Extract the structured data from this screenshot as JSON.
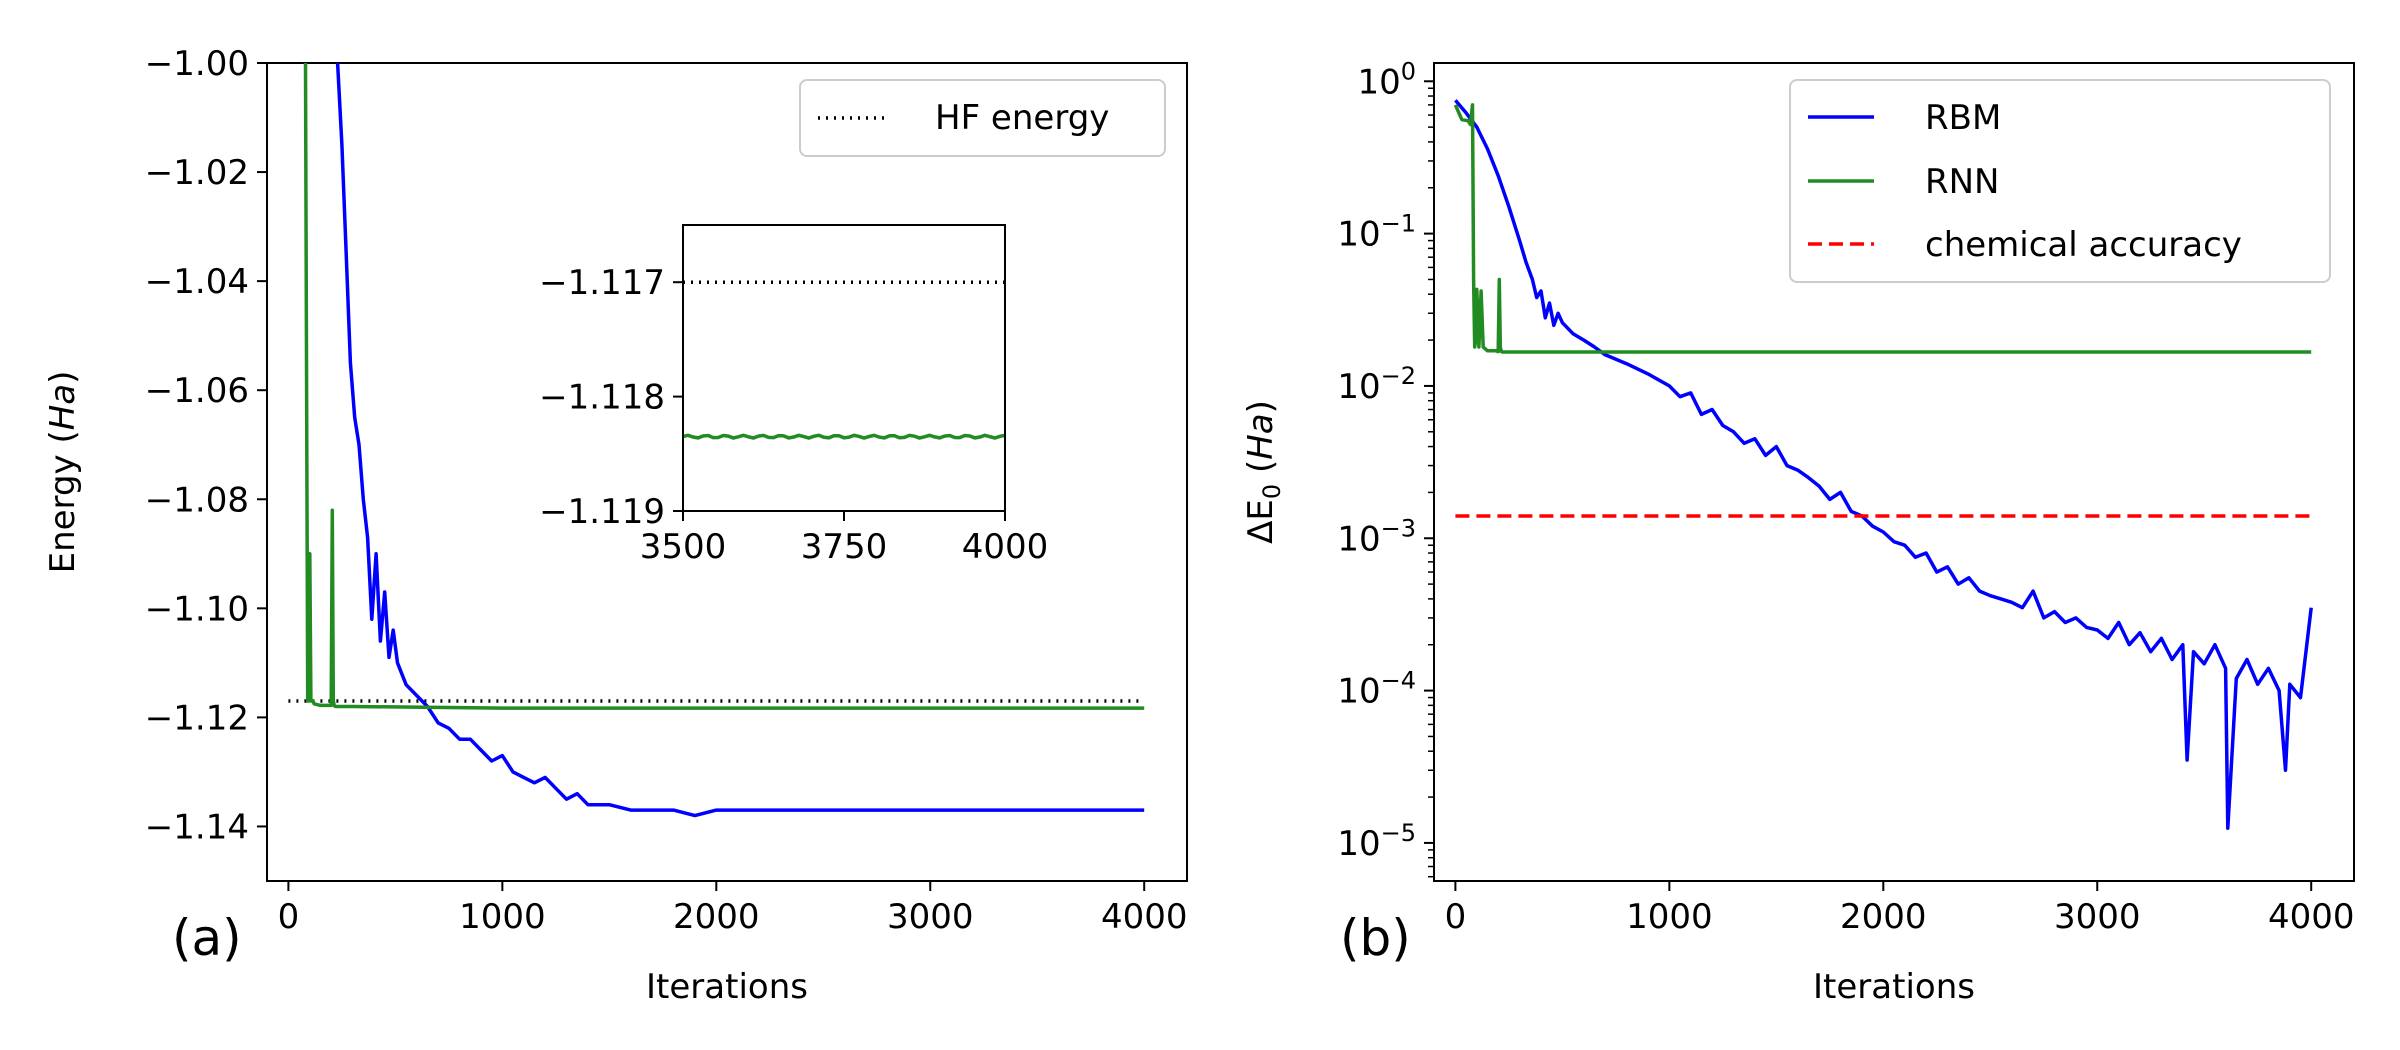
{
  "colors": {
    "rbm": "#0000ff",
    "rnn": "#228b22",
    "hf": "#000000",
    "chem": "#ff0000"
  },
  "panel_labels": {
    "a": "(a)",
    "b": "(b)"
  },
  "chart_data": [
    {
      "type": "line",
      "panel": "(a)",
      "xlabel": "Iterations",
      "ylabel_main": "Energy (",
      "ylabel_italic": "Ha",
      "ylabel_close": ")",
      "xlim": [
        -100,
        4200
      ],
      "ylim": [
        -1.15,
        -1.0
      ],
      "xticks": [
        0,
        1000,
        2000,
        3000,
        4000
      ],
      "xtick_labels": [
        "0",
        "1000",
        "2000",
        "3000",
        "4000"
      ],
      "yticks": [
        -1.14,
        -1.12,
        -1.1,
        -1.08,
        -1.06,
        -1.04,
        -1.02,
        -1.0
      ],
      "ytick_labels": [
        "−1.14",
        "−1.12",
        "−1.10",
        "−1.08",
        "−1.06",
        "−1.04",
        "−1.02",
        "−1.00"
      ],
      "legend": {
        "position": "top-right",
        "entries": [
          {
            "label": "HF energy",
            "style": "dotted",
            "color": "#000000"
          }
        ]
      },
      "series": [
        {
          "name": "HF energy",
          "color": "#000000",
          "style": "dotted",
          "x": [
            0,
            4000
          ],
          "y": [
            -1.117,
            -1.117
          ]
        },
        {
          "color": "#0000ff",
          "style": "solid",
          "x": [
            230,
            250,
            270,
            290,
            310,
            330,
            350,
            370,
            390,
            410,
            430,
            450,
            470,
            490,
            510,
            530,
            550,
            600,
            650,
            700,
            750,
            800,
            850,
            900,
            950,
            1000,
            1050,
            1100,
            1150,
            1200,
            1250,
            1300,
            1350,
            1400,
            1500,
            1600,
            1700,
            1800,
            1900,
            2000,
            2200,
            2500,
            3000,
            3500,
            4000
          ],
          "y": [
            -1.0,
            -1.015,
            -1.035,
            -1.055,
            -1.065,
            -1.07,
            -1.08,
            -1.087,
            -1.102,
            -1.09,
            -1.106,
            -1.097,
            -1.109,
            -1.104,
            -1.11,
            -1.112,
            -1.114,
            -1.116,
            -1.118,
            -1.121,
            -1.122,
            -1.124,
            -1.124,
            -1.126,
            -1.128,
            -1.127,
            -1.13,
            -1.131,
            -1.132,
            -1.131,
            -1.133,
            -1.135,
            -1.134,
            -1.136,
            -1.136,
            -1.137,
            -1.137,
            -1.137,
            -1.138,
            -1.137,
            -1.137,
            -1.137,
            -1.137,
            -1.137,
            -1.137
          ]
        },
        {
          "color": "#228b22",
          "style": "solid",
          "x": [
            80,
            80,
            85,
            90,
            95,
            100,
            105,
            110,
            115,
            120,
            150,
            200,
            205,
            210,
            215,
            220,
            300,
            1000,
            2000,
            3000,
            4000
          ],
          "y": [
            -1.0,
            -1.0,
            -1.06,
            -1.117,
            -1.117,
            -1.09,
            -1.117,
            -1.117,
            -1.117,
            -1.1175,
            -1.1178,
            -1.1178,
            -1.082,
            -1.117,
            -1.1179,
            -1.118,
            -1.118,
            -1.1183,
            -1.1183,
            -1.1183,
            -1.1183
          ]
        }
      ],
      "inset": {
        "xlim": [
          3500,
          4000
        ],
        "ylim": [
          -1.119,
          -1.1165
        ],
        "xticks": [
          3500,
          3750,
          4000
        ],
        "xtick_labels": [
          "3500",
          "3750",
          "4000"
        ],
        "yticks": [
          -1.119,
          -1.118,
          -1.117
        ],
        "ytick_labels": [
          "−1.119",
          "−1.118",
          "−1.117"
        ],
        "hf_y": -1.117,
        "rnn_y": -1.11835
      }
    },
    {
      "type": "line",
      "panel": "(b)",
      "xlabel": "Iterations",
      "ylabel_main": "ΔE",
      "ylabel_sub": "0",
      "ylabel_italic": "Ha",
      "yscale": "log",
      "xlim": [
        -100,
        4200
      ],
      "ylim_log10": [
        -5.25,
        0.12
      ],
      "xticks": [
        0,
        1000,
        2000,
        3000,
        4000
      ],
      "xtick_labels": [
        "0",
        "1000",
        "2000",
        "3000",
        "4000"
      ],
      "ytick_exponents": [
        0,
        -1,
        -2,
        -3,
        -4,
        -5
      ],
      "ytick_base": "10",
      "legend": {
        "position": "top-right",
        "entries": [
          {
            "label": "RBM",
            "style": "solid",
            "color": "#0000ff"
          },
          {
            "label": "RNN",
            "style": "solid",
            "color": "#228b22"
          },
          {
            "label": "chemical accuracy",
            "style": "dashed",
            "color": "#ff0000"
          }
        ]
      },
      "series": [
        {
          "name": "RBM",
          "color": "#0000ff",
          "style": "solid",
          "x": [
            0,
            50,
            100,
            150,
            200,
            250,
            300,
            330,
            360,
            380,
            400,
            420,
            440,
            460,
            480,
            500,
            550,
            600,
            650,
            700,
            800,
            900,
            1000,
            1050,
            1100,
            1150,
            1200,
            1250,
            1300,
            1350,
            1400,
            1450,
            1500,
            1550,
            1600,
            1650,
            1700,
            1750,
            1800,
            1850,
            1900,
            1950,
            2000,
            2050,
            2100,
            2150,
            2200,
            2250,
            2300,
            2350,
            2400,
            2450,
            2500,
            2550,
            2600,
            2650,
            2700,
            2750,
            2800,
            2850,
            2900,
            2950,
            3000,
            3050,
            3100,
            3150,
            3200,
            3250,
            3300,
            3350,
            3400,
            3420,
            3450,
            3500,
            3550,
            3600,
            3610,
            3650,
            3700,
            3750,
            3800,
            3850,
            3880,
            3900,
            3950,
            4000
          ],
          "y": [
            0.75,
            0.62,
            0.5,
            0.36,
            0.24,
            0.15,
            0.09,
            0.065,
            0.05,
            0.038,
            0.042,
            0.028,
            0.035,
            0.025,
            0.03,
            0.026,
            0.022,
            0.02,
            0.018,
            0.016,
            0.014,
            0.012,
            0.01,
            0.0085,
            0.009,
            0.0065,
            0.007,
            0.0055,
            0.005,
            0.0042,
            0.0045,
            0.0035,
            0.004,
            0.003,
            0.0028,
            0.0025,
            0.0022,
            0.0018,
            0.002,
            0.0015,
            0.0014,
            0.0012,
            0.0011,
            0.00095,
            0.0009,
            0.00075,
            0.0008,
            0.0006,
            0.00065,
            0.0005,
            0.00055,
            0.00045,
            0.00042,
            0.0004,
            0.00038,
            0.00035,
            0.00045,
            0.0003,
            0.00033,
            0.00028,
            0.0003,
            0.00026,
            0.00025,
            0.00022,
            0.00028,
            0.0002,
            0.00024,
            0.00018,
            0.00022,
            0.00016,
            0.0002,
            3.5e-05,
            0.00018,
            0.00015,
            0.0002,
            0.00014,
            1.25e-05,
            0.00012,
            0.00016,
            0.00011,
            0.00014,
            0.0001,
            3e-05,
            0.00011,
            9e-05,
            0.00035
          ]
        },
        {
          "name": "RNN",
          "color": "#228b22",
          "style": "solid",
          "x": [
            0,
            30,
            60,
            70,
            80,
            85,
            90,
            95,
            100,
            110,
            120,
            130,
            140,
            150,
            190,
            200,
            205,
            210,
            215,
            220,
            400,
            1000,
            2000,
            3000,
            4000
          ],
          "y": [
            0.7,
            0.56,
            0.55,
            0.52,
            0.7,
            0.05,
            0.018,
            0.02,
            0.043,
            0.018,
            0.042,
            0.018,
            0.0175,
            0.017,
            0.017,
            0.0168,
            0.05,
            0.018,
            0.0168,
            0.0167,
            0.0167,
            0.0167,
            0.0167,
            0.0167,
            0.0167
          ]
        },
        {
          "name": "chemical accuracy",
          "color": "#ff0000",
          "style": "dashed",
          "x": [
            0,
            4000
          ],
          "y": [
            0.0014,
            0.0014
          ]
        }
      ]
    }
  ]
}
